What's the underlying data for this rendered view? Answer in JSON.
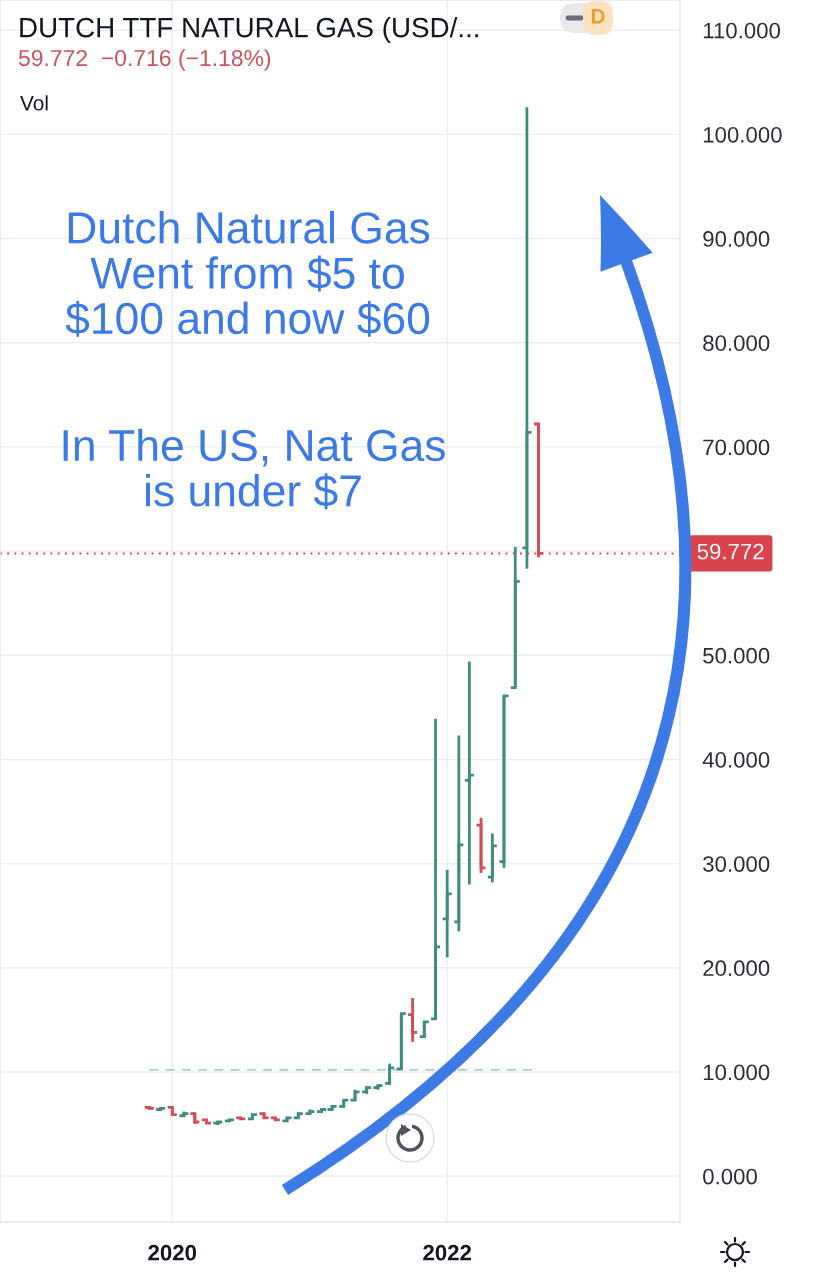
{
  "chart_data": {
    "type": "candlestick",
    "title": "DUTCH TTF NATURAL GAS (USD/...",
    "subtitle": "59.772  −0.716 (−1.18%)",
    "annotations": [
      "Vol",
      "D",
      "Dutch Natural Gas\nWent from $5 to\n$100 and now $60",
      "In The US, Nat Gas\nis under $7"
    ],
    "x": [
      "2019-11",
      "2019-12",
      "2020-01",
      "2020-02",
      "2020-03",
      "2020-04",
      "2020-05",
      "2020-06",
      "2020-07",
      "2020-08",
      "2020-09",
      "2020-10",
      "2020-11",
      "2020-12",
      "2021-01",
      "2021-02",
      "2021-03",
      "2021-04",
      "2021-05",
      "2021-06",
      "2021-07",
      "2021-08",
      "2021-09",
      "2021-10",
      "2021-11",
      "2021-12",
      "2022-01",
      "2022-02",
      "2022-03",
      "2022-04",
      "2022-05",
      "2022-06",
      "2022-07",
      "2022-08",
      "2022-09"
    ],
    "ohlc": [
      [
        6.6,
        6.7,
        6.4,
        6.5
      ],
      [
        6.4,
        6.6,
        6.3,
        6.5
      ],
      [
        6.6,
        6.7,
        5.8,
        5.9
      ],
      [
        5.8,
        6.2,
        5.7,
        6.0
      ],
      [
        6.0,
        6.1,
        5.0,
        5.2
      ],
      [
        5.4,
        5.5,
        5.0,
        5.1
      ],
      [
        5.1,
        5.3,
        4.9,
        5.2
      ],
      [
        5.3,
        5.5,
        5.2,
        5.4
      ],
      [
        5.6,
        5.7,
        5.4,
        5.5
      ],
      [
        5.5,
        6.0,
        5.4,
        5.9
      ],
      [
        6.0,
        6.1,
        5.5,
        5.6
      ],
      [
        5.6,
        5.7,
        5.3,
        5.4
      ],
      [
        5.3,
        5.7,
        5.2,
        5.6
      ],
      [
        5.6,
        6.1,
        5.6,
        6.0
      ],
      [
        6.0,
        6.4,
        5.9,
        6.2
      ],
      [
        6.2,
        6.5,
        6.1,
        6.4
      ],
      [
        6.4,
        6.8,
        6.4,
        6.7
      ],
      [
        6.7,
        7.3,
        6.6,
        7.3
      ],
      [
        7.3,
        8.3,
        7.2,
        8.1
      ],
      [
        8.1,
        8.6,
        7.9,
        8.5
      ],
      [
        8.5,
        8.8,
        8.3,
        8.7
      ],
      [
        8.9,
        10.8,
        8.8,
        10.4
      ],
      [
        10.3,
        15.6,
        10.2,
        15.6
      ],
      [
        15.5,
        17.1,
        12.9,
        13.8
      ],
      [
        13.4,
        14.9,
        13.3,
        14.8
      ],
      [
        15.1,
        43.9,
        15.1,
        22.0
      ],
      [
        24.7,
        29.4,
        21.0,
        27.1
      ],
      [
        24.4,
        42.3,
        23.5,
        31.8
      ],
      [
        38.0,
        49.4,
        28.0,
        38.5
      ],
      [
        33.7,
        34.4,
        29.1,
        29.6
      ],
      [
        28.7,
        32.9,
        28.2,
        31.7
      ],
      [
        30.2,
        46.1,
        29.6,
        46.1
      ],
      [
        46.9,
        60.4,
        46.9,
        57.1
      ],
      [
        60.3,
        102.6,
        58.3,
        71.4
      ],
      [
        72.2,
        72.2,
        59.4,
        59.772
      ]
    ],
    "colors": [
      "#d14d57",
      "#3d8c7d",
      "#d14d57",
      "#3d8c7d",
      "#d14d57",
      "#d14d57",
      "#3d8c7d",
      "#3d8c7d",
      "#d14d57",
      "#3d8c7d",
      "#d14d57",
      "#d14d57",
      "#3d8c7d",
      "#3d8c7d",
      "#3d8c7d",
      "#3d8c7d",
      "#3d8c7d",
      "#3d8c7d",
      "#3d8c7d",
      "#3d8c7d",
      "#3d8c7d",
      "#3d8c7d",
      "#3d8c7d",
      "#d14d57",
      "#3d8c7d",
      "#3d8c7d",
      "#3d8c7d",
      "#3d8c7d",
      "#3d8c7d",
      "#d14d57",
      "#3d8c7d",
      "#3d8c7d",
      "#3d8c7d",
      "#3d8c7d",
      "#d14d57"
    ],
    "xlim": [
      "2018-09-30",
      "2023-09-12"
    ],
    "xticks": [
      {
        "value": "2020-01",
        "label": "2020"
      },
      {
        "value": "2022-01",
        "label": "2022"
      }
    ],
    "ylim": [
      -4.4,
      112.9
    ],
    "yticks": [
      {
        "value": 0,
        "label": "0.000"
      },
      {
        "value": 10,
        "label": "10.000"
      },
      {
        "value": 20,
        "label": "20.000"
      },
      {
        "value": 30,
        "label": "30.000"
      },
      {
        "value": 40,
        "label": "40.000"
      },
      {
        "value": 50,
        "label": "50.000"
      },
      {
        "value": 60,
        "label": null
      },
      {
        "value": 70,
        "label": "70.000"
      },
      {
        "value": 80,
        "label": "80.000"
      },
      {
        "value": 90,
        "label": "90.000"
      },
      {
        "value": 100,
        "label": "100.000"
      },
      {
        "value": 110,
        "label": "110.000"
      }
    ],
    "grid": true,
    "ref_lines": [
      {
        "axis": "y",
        "value": 59.772,
        "label": "59.772",
        "color": "#d9434b",
        "line_style": "dotted"
      },
      {
        "axis": "y",
        "value": 10.2,
        "color": "#a9cfca",
        "line_style": "dashed"
      }
    ]
  }
}
